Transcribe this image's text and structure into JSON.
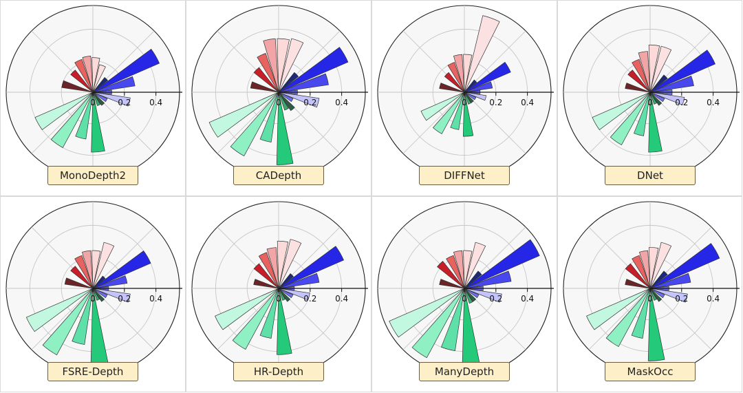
{
  "colors": [
    "#1e2a78",
    "#2626e6",
    "#4848ee",
    "#6b6bef",
    "#c4c4fb",
    "#6e6ef0",
    "#2d5d46",
    "#3daa6e",
    "#24c97a",
    "#5fe0a8",
    "#8ff0c4",
    "#c2f7e0",
    "#6b2428",
    "#c81e2a",
    "#e8625f",
    "#f2a5a6",
    "#fcdada",
    "#fbe1e1"
  ],
  "chart_data": [
    {
      "type": "polar-bar",
      "name": "MonoDepth2",
      "tick_labels": [
        "0",
        "0.2",
        "0.4"
      ],
      "rlim": [
        0,
        0.55
      ],
      "angles_deg": [
        45,
        30,
        15,
        0,
        -15,
        -30,
        -50,
        -65,
        -85,
        -105,
        -125,
        -150,
        165,
        135,
        115,
        100,
        85,
        70
      ],
      "values": [
        0.12,
        0.46,
        0.27,
        0.12,
        0.24,
        0.1,
        0.1,
        0.09,
        0.38,
        0.3,
        0.4,
        0.4,
        0.2,
        0.18,
        0.22,
        0.23,
        0.22,
        0.18
      ]
    },
    {
      "type": "polar-bar",
      "name": "CADepth",
      "tick_labels": [
        "0",
        "0.2",
        "0.4"
      ],
      "rlim": [
        0,
        0.55
      ],
      "angles_deg": [
        45,
        30,
        15,
        0,
        -15,
        -30,
        -50,
        -65,
        -85,
        -105,
        -125,
        -150,
        165,
        135,
        115,
        100,
        85,
        70
      ],
      "values": [
        0.16,
        0.48,
        0.32,
        0.12,
        0.26,
        0.1,
        0.14,
        0.12,
        0.46,
        0.32,
        0.46,
        0.48,
        0.18,
        0.2,
        0.26,
        0.34,
        0.34,
        0.35
      ]
    },
    {
      "type": "polar-bar",
      "name": "DIFFNet",
      "tick_labels": [
        "0",
        "0.2",
        "0.4"
      ],
      "rlim": [
        0,
        0.55
      ],
      "angles_deg": [
        45,
        30,
        15,
        0,
        -15,
        -30,
        -50,
        -65,
        -85,
        -105,
        -125,
        -150,
        165,
        135,
        115,
        100,
        85,
        70
      ],
      "values": [
        0.1,
        0.32,
        0.18,
        0.1,
        0.14,
        0.08,
        0.08,
        0.08,
        0.28,
        0.24,
        0.3,
        0.3,
        0.16,
        0.16,
        0.2,
        0.24,
        0.24,
        0.5
      ]
    },
    {
      "type": "polar-bar",
      "name": "DNet",
      "tick_labels": [
        "0",
        "0.2",
        "0.4"
      ],
      "rlim": [
        0,
        0.55
      ],
      "angles_deg": [
        45,
        30,
        15,
        0,
        -15,
        -30,
        -50,
        -65,
        -85,
        -105,
        -125,
        -150,
        165,
        135,
        115,
        100,
        85,
        70
      ],
      "values": [
        0.14,
        0.45,
        0.28,
        0.14,
        0.22,
        0.1,
        0.1,
        0.08,
        0.38,
        0.28,
        0.38,
        0.4,
        0.16,
        0.18,
        0.22,
        0.26,
        0.3,
        0.3
      ]
    },
    {
      "type": "polar-bar",
      "name": "FSRE-Depth",
      "tick_labels": [
        "0",
        "0.2",
        "0.4"
      ],
      "rlim": [
        0,
        0.55
      ],
      "angles_deg": [
        45,
        30,
        15,
        0,
        -15,
        -30,
        -50,
        -65,
        -85,
        -105,
        -125,
        -150,
        165,
        135,
        115,
        100,
        85,
        70
      ],
      "values": [
        0.1,
        0.4,
        0.22,
        0.1,
        0.24,
        0.1,
        0.1,
        0.08,
        0.48,
        0.36,
        0.48,
        0.46,
        0.18,
        0.18,
        0.22,
        0.24,
        0.24,
        0.3
      ]
    },
    {
      "type": "polar-bar",
      "name": "HR-Depth",
      "tick_labels": [
        "0",
        "0.2",
        "0.4"
      ],
      "rlim": [
        0,
        0.55
      ],
      "angles_deg": [
        45,
        30,
        15,
        0,
        -15,
        -30,
        -50,
        -65,
        -85,
        -105,
        -125,
        -150,
        165,
        135,
        115,
        100,
        85,
        70
      ],
      "values": [
        0.12,
        0.45,
        0.26,
        0.1,
        0.2,
        0.1,
        0.1,
        0.08,
        0.42,
        0.32,
        0.44,
        0.44,
        0.16,
        0.2,
        0.24,
        0.26,
        0.3,
        0.32
      ]
    },
    {
      "type": "polar-bar",
      "name": "ManyDepth",
      "tick_labels": [
        "0",
        "0.2",
        "0.4"
      ],
      "rlim": [
        0,
        0.55
      ],
      "angles_deg": [
        45,
        30,
        15,
        0,
        -15,
        -30,
        -50,
        -65,
        -85,
        -105,
        -125,
        -150,
        165,
        135,
        115,
        100,
        85,
        70
      ],
      "values": [
        0.14,
        0.52,
        0.3,
        0.12,
        0.24,
        0.1,
        0.1,
        0.1,
        0.52,
        0.4,
        0.5,
        0.52,
        0.16,
        0.22,
        0.22,
        0.24,
        0.24,
        0.3
      ]
    },
    {
      "type": "polar-bar",
      "name": "MaskOcc",
      "tick_labels": [
        "0",
        "0.2",
        "0.4"
      ],
      "rlim": [
        0,
        0.55
      ],
      "angles_deg": [
        45,
        30,
        15,
        0,
        -15,
        -30,
        -50,
        -65,
        -85,
        -105,
        -125,
        -150,
        165,
        135,
        115,
        100,
        85,
        70
      ],
      "values": [
        0.14,
        0.48,
        0.26,
        0.12,
        0.24,
        0.1,
        0.1,
        0.08,
        0.46,
        0.32,
        0.42,
        0.44,
        0.16,
        0.2,
        0.22,
        0.24,
        0.26,
        0.3
      ]
    }
  ]
}
